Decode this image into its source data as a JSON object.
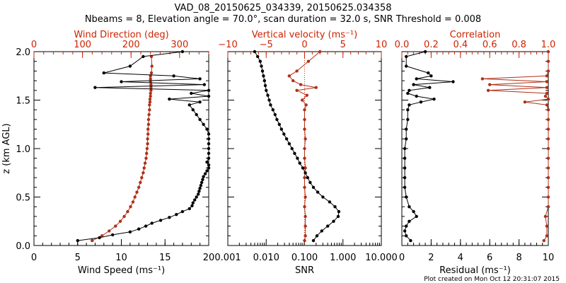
{
  "header": {
    "title": "VAD_08_20150625_034339, 20150625.034358",
    "subtitle": "Nbeams = 8, Elevation angle = 70.0°, scan duration = 32.0 s, SNR Threshold = 0.008"
  },
  "footer": {
    "text": "Plot created on Mon Oct 12 20:31:07 2015"
  },
  "colors": {
    "primary": "#000000",
    "secondary": "#b03018",
    "secondary_text": "#cc2200"
  },
  "chart_data": [
    {
      "type": "line",
      "ylabel": "z (km AGL)",
      "ylim": [
        0,
        2
      ],
      "yticks": [
        "0.0",
        "0.5",
        "1.0",
        "1.5",
        "2.0"
      ],
      "bottom_axis": {
        "label": "Wind Speed (ms⁻¹)",
        "range": [
          0,
          20
        ],
        "ticks": [
          "0",
          "5",
          "10",
          "15",
          "20"
        ]
      },
      "top_axis": {
        "label": "Wind Direction (deg)",
        "range": [
          0,
          360
        ],
        "ticks": [
          "0",
          "100",
          "200",
          "300"
        ],
        "tick_values": [
          0,
          100,
          200,
          300
        ]
      },
      "series": [
        {
          "axis": "bottom",
          "color": "#000000",
          "z": [
            0.05,
            0.08,
            0.11,
            0.14,
            0.17,
            0.2,
            0.23,
            0.26,
            0.29,
            0.32,
            0.35,
            0.38,
            0.41,
            0.44,
            0.47,
            0.5,
            0.53,
            0.56,
            0.59,
            0.62,
            0.65,
            0.68,
            0.71,
            0.74,
            0.77,
            0.8,
            0.83,
            0.86,
            0.9,
            0.95,
            1.0,
            1.05,
            1.1,
            1.15,
            1.2,
            1.25,
            1.3,
            1.35,
            1.4,
            1.45,
            1.48,
            1.51,
            1.54,
            1.57,
            1.6,
            1.63,
            1.66,
            1.69,
            1.72,
            1.75,
            1.78,
            1.85,
            1.95,
            2.0
          ],
          "values": [
            5.0,
            7.5,
            9.0,
            11.0,
            12.0,
            12.8,
            13.5,
            14.5,
            15.5,
            16.3,
            17.0,
            17.8,
            18.1,
            18.2,
            18.4,
            18.6,
            18.8,
            18.9,
            19.0,
            19.1,
            19.2,
            19.3,
            19.4,
            19.6,
            19.8,
            20.0,
            20.0,
            19.8,
            20.0,
            20.0,
            20.0,
            20.0,
            20.0,
            20.0,
            19.8,
            19.4,
            19.0,
            18.6,
            18.2,
            17.8,
            19.0,
            15.5,
            20.0,
            18.0,
            20.0,
            7.0,
            19.5,
            10.0,
            19.0,
            16.0,
            8.0,
            11.0,
            12.5,
            17.0
          ]
        },
        {
          "axis": "top",
          "color": "#b03018",
          "z": [
            0.05,
            0.1,
            0.15,
            0.2,
            0.25,
            0.3,
            0.35,
            0.4,
            0.45,
            0.5,
            0.55,
            0.6,
            0.65,
            0.7,
            0.75,
            0.8,
            0.85,
            0.9,
            0.95,
            1.0,
            1.05,
            1.1,
            1.15,
            1.2,
            1.25,
            1.3,
            1.35,
            1.4,
            1.45,
            1.48,
            1.51,
            1.54,
            1.57,
            1.6,
            1.63,
            1.66,
            1.69,
            1.72,
            1.75,
            1.78,
            1.85,
            1.95
          ],
          "values": [
            120,
            140,
            155,
            168,
            178,
            186,
            193,
            199,
            204,
            208,
            212,
            216,
            219,
            222,
            225,
            227,
            229,
            231,
            232,
            233,
            234,
            234,
            235,
            235,
            236,
            236,
            237,
            238,
            238,
            239,
            239,
            240,
            240,
            241,
            241,
            241,
            240,
            240,
            240,
            242,
            243,
            242
          ]
        }
      ]
    },
    {
      "type": "line",
      "bottom_axis": {
        "label": "SNR",
        "scale": "log",
        "range": [
          0.001,
          10
        ],
        "ticks": [
          "0.001",
          "0.010",
          "0.100",
          "1.000",
          "10.000"
        ],
        "tick_values": [
          0.001,
          0.01,
          0.1,
          1,
          10
        ]
      },
      "top_axis": {
        "label": "Vertical velocity (ms⁻¹)",
        "range": [
          -10,
          10
        ],
        "ticks": [
          "−10",
          "−5",
          "0",
          "5",
          "10"
        ],
        "tick_values": [
          -10,
          -5,
          0,
          5,
          10
        ]
      },
      "reference_line": {
        "axis": "top",
        "value": 0,
        "style": "dotted"
      },
      "series": [
        {
          "axis": "bottom",
          "color": "#000000",
          "z": [
            0.05,
            0.1,
            0.15,
            0.2,
            0.25,
            0.3,
            0.35,
            0.4,
            0.45,
            0.5,
            0.55,
            0.6,
            0.65,
            0.7,
            0.75,
            0.8,
            0.85,
            0.9,
            0.95,
            1.0,
            1.05,
            1.1,
            1.15,
            1.2,
            1.25,
            1.3,
            1.35,
            1.4,
            1.45,
            1.5,
            1.55,
            1.6,
            1.65,
            1.7,
            1.75,
            1.8,
            1.85,
            1.9,
            1.95,
            2.0
          ],
          "values": [
            0.17,
            0.21,
            0.28,
            0.4,
            0.57,
            0.75,
            0.78,
            0.62,
            0.45,
            0.3,
            0.22,
            0.17,
            0.14,
            0.12,
            0.105,
            0.09,
            0.075,
            0.065,
            0.055,
            0.047,
            0.04,
            0.034,
            0.029,
            0.025,
            0.022,
            0.019,
            0.017,
            0.015,
            0.013,
            0.012,
            0.011,
            0.01,
            0.0095,
            0.009,
            0.0085,
            0.008,
            0.0075,
            0.007,
            0.006,
            0.005
          ]
        },
        {
          "axis": "top",
          "color": "#b03018",
          "z": [
            0.05,
            0.1,
            0.2,
            0.3,
            0.4,
            0.5,
            0.6,
            0.7,
            0.8,
            0.9,
            1.0,
            1.1,
            1.2,
            1.3,
            1.4,
            1.45,
            1.5,
            1.55,
            1.6,
            1.63,
            1.66,
            1.7,
            1.75,
            1.8,
            1.9,
            2.0
          ],
          "values": [
            0.0,
            0.1,
            0.1,
            0.1,
            0.0,
            0.1,
            0.0,
            0.0,
            0.1,
            0.0,
            0.0,
            0.1,
            0.0,
            0.0,
            0.0,
            0.2,
            -0.3,
            0.3,
            -1.0,
            1.5,
            -0.5,
            -1.5,
            -2.0,
            -1.0,
            0.5,
            2.0
          ]
        }
      ]
    },
    {
      "type": "line",
      "bottom_axis": {
        "label": "Residual (ms⁻¹)",
        "range": [
          0,
          10
        ],
        "ticks": [
          "0",
          "2",
          "4",
          "6",
          "8",
          "10"
        ],
        "tick_values": [
          0,
          2,
          4,
          6,
          8,
          10
        ]
      },
      "top_axis": {
        "label": "Correlation",
        "range": [
          0,
          1
        ],
        "ticks": [
          "0.0",
          "0.2",
          "0.4",
          "0.6",
          "0.8",
          "1.0"
        ],
        "tick_values": [
          0,
          0.2,
          0.4,
          0.6,
          0.8,
          1.0
        ]
      },
      "series": [
        {
          "axis": "bottom",
          "color": "#000000",
          "z": [
            0.05,
            0.1,
            0.15,
            0.2,
            0.25,
            0.3,
            0.35,
            0.4,
            0.5,
            0.6,
            0.7,
            0.8,
            0.9,
            1.0,
            1.1,
            1.2,
            1.3,
            1.4,
            1.45,
            1.48,
            1.51,
            1.54,
            1.57,
            1.6,
            1.63,
            1.66,
            1.69,
            1.72,
            1.75,
            1.78,
            1.85,
            1.95,
            2.0
          ],
          "values": [
            0.6,
            0.3,
            0.2,
            0.3,
            0.5,
            1.0,
            0.8,
            0.5,
            0.3,
            0.2,
            0.2,
            0.2,
            0.2,
            0.2,
            0.3,
            0.3,
            0.4,
            0.4,
            0.5,
            1.3,
            2.2,
            1.0,
            0.4,
            0.5,
            1.9,
            0.8,
            3.5,
            1.0,
            2.0,
            1.8,
            0.3,
            0.3,
            1.6
          ]
        },
        {
          "axis": "top",
          "color": "#b03018",
          "z": [
            0.05,
            0.1,
            0.2,
            0.3,
            0.4,
            0.5,
            0.6,
            0.7,
            0.8,
            0.9,
            1.0,
            1.1,
            1.2,
            1.3,
            1.4,
            1.45,
            1.48,
            1.51,
            1.54,
            1.57,
            1.6,
            1.63,
            1.66,
            1.69,
            1.72,
            1.75,
            1.8,
            1.9,
            2.0
          ],
          "values": [
            0.97,
            0.99,
            0.99,
            0.98,
            1.0,
            1.0,
            1.0,
            1.0,
            1.0,
            1.0,
            1.0,
            1.0,
            1.0,
            1.0,
            1.0,
            0.99,
            0.84,
            1.0,
            0.98,
            0.99,
            0.59,
            0.99,
            0.6,
            0.99,
            0.55,
            0.99,
            1.0,
            1.0,
            1.0
          ]
        }
      ]
    }
  ]
}
